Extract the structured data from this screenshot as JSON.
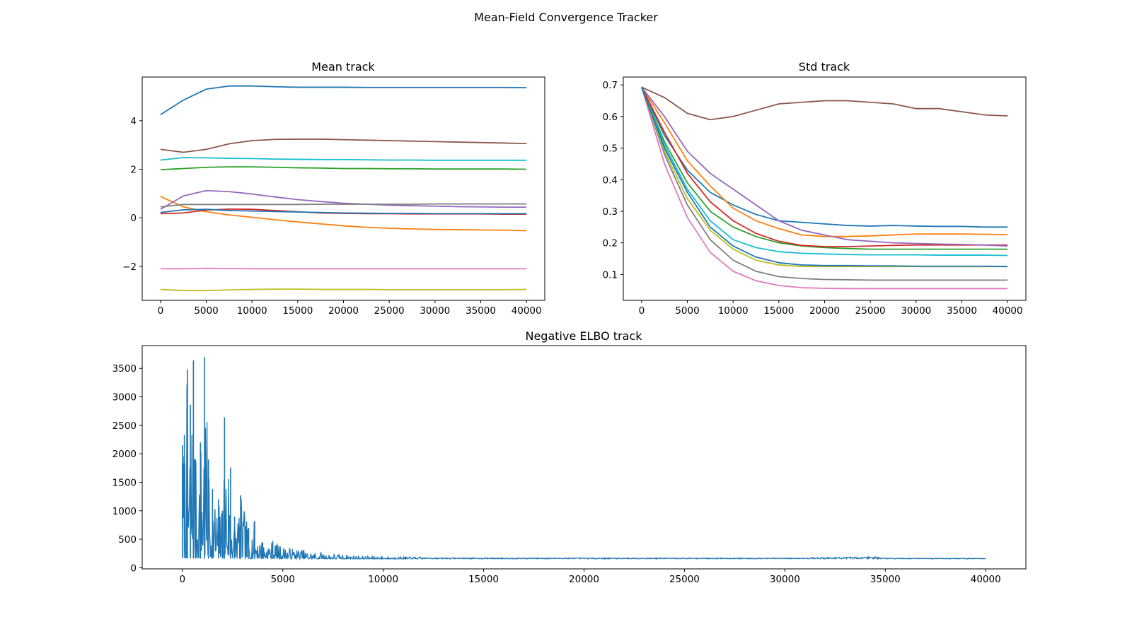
{
  "figure": {
    "title": "Mean-Field Convergence Tracker"
  },
  "series_colors": [
    "#1f77b4",
    "#ff7f0e",
    "#2ca02c",
    "#d62728",
    "#9467bd",
    "#8c564b",
    "#e377c2",
    "#7f7f7f",
    "#bcbd22",
    "#17becf"
  ],
  "chart_data": [
    {
      "id": "mean",
      "type": "line",
      "title": "Mean track",
      "xlabel": "",
      "ylabel": "",
      "xlim": [
        -2000,
        42000
      ],
      "ylim": [
        -3.4,
        5.8
      ],
      "xticks": [
        0,
        5000,
        10000,
        15000,
        20000,
        25000,
        30000,
        35000,
        40000
      ],
      "yticks": [
        -2,
        0,
        2,
        4
      ],
      "grid": false,
      "legend": "none",
      "x": [
        0,
        2500,
        5000,
        7500,
        10000,
        12500,
        15000,
        17500,
        20000,
        22500,
        25000,
        27500,
        30000,
        32500,
        35000,
        37500,
        40000
      ],
      "series": [
        {
          "color_index": 0,
          "values": [
            4.25,
            4.85,
            5.3,
            5.43,
            5.43,
            5.4,
            5.38,
            5.38,
            5.38,
            5.37,
            5.37,
            5.37,
            5.37,
            5.37,
            5.37,
            5.37,
            5.36
          ]
        },
        {
          "color_index": 1,
          "values": [
            0.88,
            0.45,
            0.25,
            0.12,
            0.02,
            -0.08,
            -0.17,
            -0.25,
            -0.33,
            -0.39,
            -0.43,
            -0.46,
            -0.48,
            -0.49,
            -0.5,
            -0.51,
            -0.53
          ]
        },
        {
          "color_index": 2,
          "values": [
            1.98,
            2.03,
            2.08,
            2.1,
            2.1,
            2.08,
            2.06,
            2.05,
            2.03,
            2.03,
            2.02,
            2.02,
            2.01,
            2.01,
            2.01,
            2.01,
            2.0
          ]
        },
        {
          "color_index": 3,
          "values": [
            0.17,
            0.2,
            0.32,
            0.36,
            0.35,
            0.3,
            0.25,
            0.2,
            0.18,
            0.17,
            0.17,
            0.16,
            0.16,
            0.16,
            0.16,
            0.15,
            0.15
          ]
        },
        {
          "color_index": 4,
          "values": [
            0.35,
            0.9,
            1.12,
            1.08,
            0.98,
            0.86,
            0.75,
            0.67,
            0.6,
            0.56,
            0.52,
            0.5,
            0.48,
            0.46,
            0.45,
            0.44,
            0.44
          ]
        },
        {
          "color_index": 5,
          "values": [
            2.82,
            2.7,
            2.82,
            3.05,
            3.18,
            3.23,
            3.24,
            3.24,
            3.22,
            3.2,
            3.18,
            3.16,
            3.14,
            3.12,
            3.1,
            3.08,
            3.06
          ]
        },
        {
          "color_index": 6,
          "values": [
            -2.1,
            -2.1,
            -2.08,
            -2.09,
            -2.1,
            -2.1,
            -2.1,
            -2.1,
            -2.1,
            -2.1,
            -2.1,
            -2.1,
            -2.1,
            -2.1,
            -2.1,
            -2.1,
            -2.1
          ]
        },
        {
          "color_index": 7,
          "values": [
            0.45,
            0.55,
            0.55,
            0.55,
            0.55,
            0.55,
            0.55,
            0.56,
            0.56,
            0.56,
            0.56,
            0.56,
            0.57,
            0.57,
            0.57,
            0.57,
            0.57
          ]
        },
        {
          "color_index": 8,
          "values": [
            -2.95,
            -3.0,
            -3.0,
            -2.97,
            -2.95,
            -2.94,
            -2.94,
            -2.95,
            -2.95,
            -2.95,
            -2.96,
            -2.96,
            -2.96,
            -2.96,
            -2.96,
            -2.96,
            -2.95
          ]
        },
        {
          "color_index": 9,
          "values": [
            2.38,
            2.48,
            2.47,
            2.45,
            2.44,
            2.42,
            2.41,
            2.4,
            2.4,
            2.39,
            2.38,
            2.38,
            2.37,
            2.37,
            2.37,
            2.37,
            2.37
          ]
        },
        {
          "color_index": 0,
          "values": [
            0.22,
            0.33,
            0.35,
            0.3,
            0.28,
            0.26,
            0.24,
            0.22,
            0.2,
            0.19,
            0.18,
            0.18,
            0.17,
            0.17,
            0.17,
            0.17,
            0.17
          ]
        }
      ]
    },
    {
      "id": "std",
      "type": "line",
      "title": "Std track",
      "xlabel": "",
      "ylabel": "",
      "xlim": [
        -2000,
        42000
      ],
      "ylim": [
        0.018,
        0.725
      ],
      "xticks": [
        0,
        5000,
        10000,
        15000,
        20000,
        25000,
        30000,
        35000,
        40000
      ],
      "yticks": [
        0.1,
        0.2,
        0.3,
        0.4,
        0.5,
        0.6,
        0.7
      ],
      "grid": false,
      "legend": "none",
      "x": [
        0,
        2500,
        5000,
        7500,
        10000,
        12500,
        15000,
        17500,
        20000,
        22500,
        25000,
        27500,
        30000,
        32500,
        35000,
        37500,
        40000
      ],
      "series": [
        {
          "color_index": 0,
          "values": [
            0.693,
            0.54,
            0.43,
            0.36,
            0.32,
            0.29,
            0.27,
            0.265,
            0.26,
            0.255,
            0.253,
            0.255,
            0.253,
            0.252,
            0.252,
            0.25,
            0.25
          ]
        },
        {
          "color_index": 1,
          "values": [
            0.693,
            0.58,
            0.46,
            0.38,
            0.31,
            0.27,
            0.245,
            0.225,
            0.22,
            0.22,
            0.222,
            0.225,
            0.228,
            0.228,
            0.228,
            0.227,
            0.226
          ]
        },
        {
          "color_index": 2,
          "values": [
            0.693,
            0.52,
            0.39,
            0.3,
            0.25,
            0.22,
            0.2,
            0.19,
            0.185,
            0.182,
            0.18,
            0.18,
            0.18,
            0.18,
            0.18,
            0.18,
            0.18
          ]
        },
        {
          "color_index": 3,
          "values": [
            0.693,
            0.55,
            0.42,
            0.33,
            0.27,
            0.23,
            0.205,
            0.192,
            0.188,
            0.188,
            0.19,
            0.192,
            0.193,
            0.193,
            0.193,
            0.193,
            0.193
          ]
        },
        {
          "color_index": 4,
          "values": [
            0.693,
            0.6,
            0.49,
            0.42,
            0.37,
            0.32,
            0.27,
            0.24,
            0.225,
            0.21,
            0.205,
            0.2,
            0.198,
            0.196,
            0.195,
            0.193,
            0.19
          ]
        },
        {
          "color_index": 5,
          "values": [
            0.693,
            0.66,
            0.61,
            0.59,
            0.6,
            0.62,
            0.64,
            0.645,
            0.65,
            0.65,
            0.645,
            0.64,
            0.625,
            0.625,
            0.615,
            0.605,
            0.602
          ]
        },
        {
          "color_index": 6,
          "values": [
            0.693,
            0.45,
            0.28,
            0.17,
            0.11,
            0.08,
            0.065,
            0.058,
            0.056,
            0.055,
            0.055,
            0.055,
            0.055,
            0.055,
            0.055,
            0.055,
            0.055
          ]
        },
        {
          "color_index": 7,
          "values": [
            0.693,
            0.48,
            0.32,
            0.21,
            0.145,
            0.11,
            0.093,
            0.087,
            0.084,
            0.083,
            0.082,
            0.082,
            0.082,
            0.082,
            0.082,
            0.082,
            0.082
          ]
        },
        {
          "color_index": 8,
          "values": [
            0.693,
            0.49,
            0.34,
            0.24,
            0.18,
            0.145,
            0.13,
            0.125,
            0.125,
            0.125,
            0.125,
            0.125,
            0.125,
            0.125,
            0.125,
            0.125,
            0.125
          ]
        },
        {
          "color_index": 9,
          "values": [
            0.693,
            0.51,
            0.37,
            0.27,
            0.21,
            0.185,
            0.172,
            0.167,
            0.165,
            0.163,
            0.162,
            0.162,
            0.162,
            0.161,
            0.161,
            0.161,
            0.16
          ]
        },
        {
          "color_index": 0,
          "values": [
            0.693,
            0.5,
            0.36,
            0.25,
            0.19,
            0.155,
            0.137,
            0.13,
            0.128,
            0.128,
            0.127,
            0.127,
            0.126,
            0.126,
            0.126,
            0.126,
            0.125
          ]
        }
      ]
    },
    {
      "id": "elbo",
      "type": "line",
      "title": "Negative ELBO track",
      "xlabel": "",
      "ylabel": "",
      "xlim": [
        -2000,
        42000
      ],
      "ylim": [
        -20,
        3900
      ],
      "xticks": [
        0,
        5000,
        10000,
        15000,
        20000,
        25000,
        30000,
        35000,
        40000
      ],
      "yticks": [
        0,
        500,
        1000,
        1500,
        2000,
        2500,
        3000,
        3500
      ],
      "grid": false,
      "legend": "none",
      "series": [
        {
          "color_index": 0,
          "envelope": {
            "x": [
              0,
              100,
              250,
              400,
              550,
              650,
              900,
              1100,
              1300,
              1500,
              1800,
              2000,
              2100,
              2400,
              2600,
              2900,
              3300,
              3600,
              4000,
              4500,
              5000,
              6000,
              7000,
              8000,
              9000,
              10000,
              12000,
              15000,
              20000,
              25000,
              30000,
              34700,
              35000,
              40000
            ],
            "low": [
              170,
              170,
              165,
              165,
              165,
              160,
              160,
              160,
              160,
              160,
              160,
              160,
              160,
              160,
              160,
              155,
              155,
              155,
              155,
              155,
              155,
              155,
              155,
              155,
              155,
              155,
              155,
              155,
              155,
              155,
              155,
              155,
              155,
              155
            ],
            "high": [
              2150,
              2330,
              3480,
              2860,
              3640,
              1900,
              2200,
              3700,
              1900,
              1380,
              1200,
              1000,
              2640,
              1760,
              900,
              1270,
              700,
              820,
              450,
              470,
              380,
              320,
              280,
              240,
              210,
              200,
              190,
              185,
              185,
              185,
              180,
              220,
              180,
              175
            ]
          }
        }
      ]
    }
  ]
}
